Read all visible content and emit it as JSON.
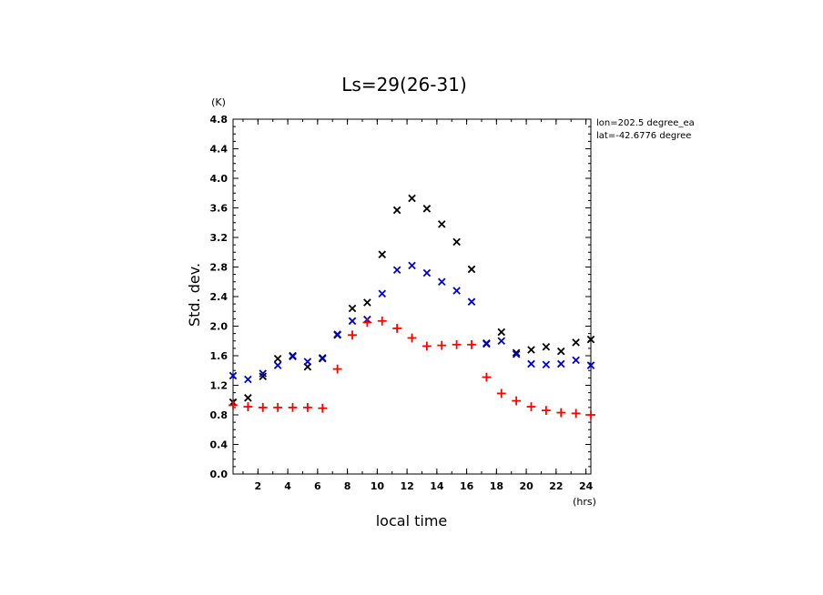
{
  "chart_data": {
    "type": "scatter",
    "title": "Ls=29(26-31)",
    "xlabel": "local time",
    "ylabel": "Std. dev.",
    "x_unit": "(hrs)",
    "y_unit": "(K)",
    "xlim": [
      0.33,
      24.33
    ],
    "ylim": [
      0.0,
      4.8
    ],
    "x_ticks": [
      2,
      4,
      6,
      8,
      10,
      12,
      14,
      16,
      18,
      20,
      22,
      24
    ],
    "y_ticks": [
      0.0,
      0.4,
      0.8,
      1.2,
      1.6,
      2.0,
      2.4,
      2.8,
      3.2,
      3.6,
      4.0,
      4.4,
      4.8
    ],
    "y_tick_labels": [
      "0.0",
      "0.4",
      "0.8",
      "1.2",
      "1.6",
      "2.0",
      "2.4",
      "2.8",
      "3.2",
      "3.6",
      "4.0",
      "4.4",
      "4.8"
    ],
    "annotations": [
      "lon=202.5 degree_ea",
      "lat=-42.6776 degree"
    ],
    "grid": false,
    "x": [
      0.33,
      1.33,
      2.33,
      3.33,
      4.33,
      5.33,
      6.33,
      7.33,
      8.33,
      9.33,
      10.33,
      11.33,
      12.33,
      13.33,
      14.33,
      15.33,
      16.33,
      17.33,
      18.33,
      19.33,
      20.33,
      21.33,
      22.33,
      23.33,
      24.33
    ],
    "series": [
      {
        "marker": "x",
        "color": "#000000",
        "values": [
          0.97,
          1.03,
          1.32,
          1.56,
          1.6,
          1.45,
          1.57,
          1.88,
          2.24,
          2.32,
          2.97,
          3.57,
          3.73,
          3.59,
          3.38,
          3.14,
          2.77,
          1.76,
          1.92,
          1.64,
          1.68,
          1.72,
          1.66,
          1.78,
          1.82
        ]
      },
      {
        "marker": "x",
        "color": "#0000cc",
        "values": [
          1.33,
          1.28,
          1.36,
          1.47,
          1.59,
          1.52,
          1.56,
          1.89,
          2.07,
          2.09,
          2.44,
          2.76,
          2.82,
          2.72,
          2.6,
          2.48,
          2.33,
          1.77,
          1.8,
          1.62,
          1.49,
          1.48,
          1.49,
          1.54,
          1.47
        ]
      },
      {
        "marker": "+",
        "color": "#ff0000",
        "values": [
          0.93,
          0.91,
          0.9,
          0.9,
          0.9,
          0.9,
          0.89,
          1.42,
          1.88,
          2.05,
          2.07,
          1.97,
          1.84,
          1.73,
          1.74,
          1.75,
          1.75,
          1.31,
          1.09,
          0.99,
          0.91,
          0.86,
          0.83,
          0.82,
          0.8
        ]
      }
    ]
  }
}
